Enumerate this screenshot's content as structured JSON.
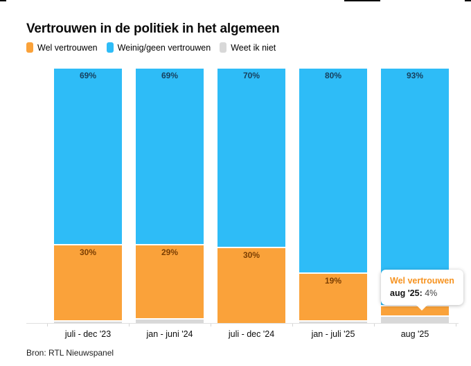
{
  "page": {
    "title": "Vertrouwen in de politiek in het algemeen",
    "source": "Bron: RTL Nieuwspanel"
  },
  "legend": {
    "items": [
      {
        "label": "Wel vertrouwen",
        "color": "#faa23a"
      },
      {
        "label": "Weinig/geen vertrouwen",
        "color": "#2ebcf7"
      },
      {
        "label": "Weet ik niet",
        "color": "#d8d8d8"
      }
    ]
  },
  "tooltip": {
    "series": "Wel vertrouwen",
    "category": "aug '25:",
    "value": "4%"
  },
  "chart_data": {
    "type": "bar",
    "stacked": true,
    "stacking": "percent",
    "title": "Vertrouwen in de politiek in het algemeen",
    "xlabel": "",
    "ylabel": "",
    "ylim": [
      0,
      100
    ],
    "unit": "%",
    "grid": false,
    "legend_position": "top",
    "categories": [
      "juli - dec '23",
      "jan - juni '24",
      "juli - dec '24",
      "jan - juli '25",
      "aug '25"
    ],
    "series": [
      {
        "name": "Weinig/geen vertrouwen",
        "color": "#2ebcf7",
        "label_color": "#17405e",
        "values": [
          69,
          69,
          70,
          80,
          93
        ],
        "labels": [
          "69%",
          "69%",
          "70%",
          "80%",
          "93%"
        ]
      },
      {
        "name": "Wel vertrouwen",
        "color": "#faa23a",
        "label_color": "#7b3e02",
        "values": [
          30,
          29,
          30,
          19,
          4
        ],
        "labels": [
          "30%",
          "29%",
          "30%",
          "19%",
          ""
        ]
      },
      {
        "name": "Weet ik niet",
        "color": "#d8d8d8",
        "label_color": "",
        "values": [
          1,
          2,
          0,
          1,
          3
        ],
        "labels": [
          "",
          "",
          "",
          "",
          ""
        ]
      }
    ]
  }
}
